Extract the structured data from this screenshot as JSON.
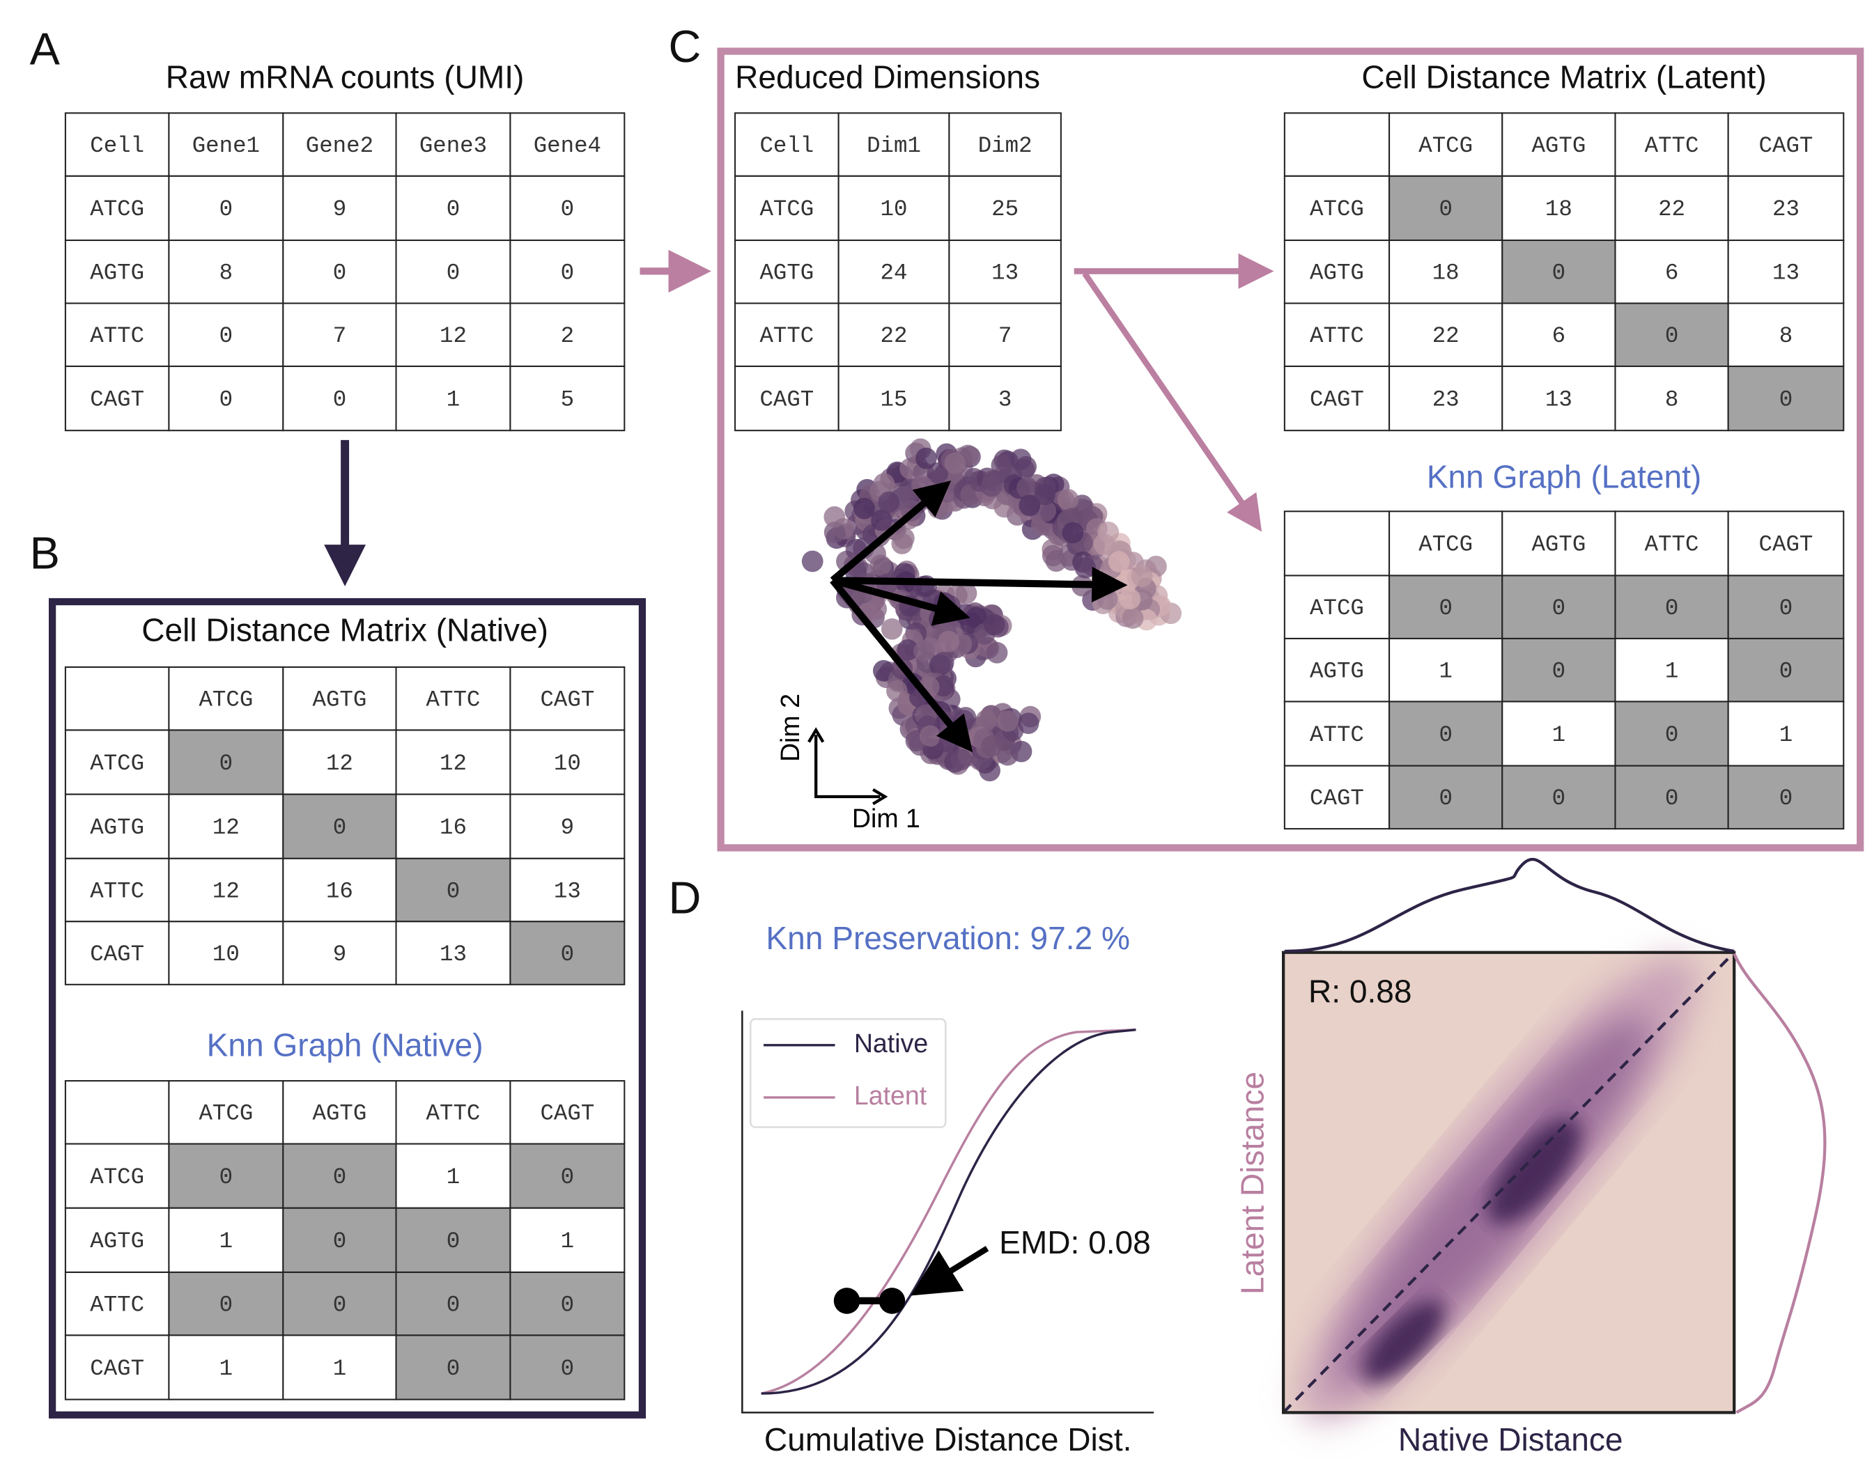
{
  "panel_labels": {
    "a": "A",
    "b": "B",
    "c": "C",
    "d": "D"
  },
  "raw_counts": {
    "title": "Raw mRNA counts (UMI)",
    "columns": [
      "Cell",
      "Gene1",
      "Gene2",
      "Gene3",
      "Gene4"
    ],
    "rows": [
      {
        "cell": "ATCG",
        "values": [
          0,
          9,
          0,
          0
        ]
      },
      {
        "cell": "AGTG",
        "values": [
          8,
          0,
          0,
          0
        ]
      },
      {
        "cell": "ATTC",
        "values": [
          0,
          7,
          12,
          2
        ]
      },
      {
        "cell": "CAGT",
        "values": [
          0,
          0,
          1,
          5
        ]
      }
    ],
    "shade_zero": false
  },
  "native_distance": {
    "title": "Cell Distance Matrix (Native)",
    "columns": [
      "ATCG",
      "AGTG",
      "ATTC",
      "CAGT"
    ],
    "rows": [
      {
        "cell": "ATCG",
        "values": [
          0,
          12,
          12,
          10
        ]
      },
      {
        "cell": "AGTG",
        "values": [
          12,
          0,
          16,
          9
        ]
      },
      {
        "cell": "ATTC",
        "values": [
          12,
          16,
          0,
          13
        ]
      },
      {
        "cell": "CAGT",
        "values": [
          10,
          9,
          13,
          0
        ]
      }
    ],
    "shade_zero": true
  },
  "native_knn": {
    "title": "Knn Graph (Native)",
    "columns": [
      "ATCG",
      "AGTG",
      "ATTC",
      "CAGT"
    ],
    "rows": [
      {
        "cell": "ATCG",
        "values": [
          0,
          0,
          1,
          0
        ]
      },
      {
        "cell": "AGTG",
        "values": [
          1,
          0,
          0,
          1
        ]
      },
      {
        "cell": "ATTC",
        "values": [
          0,
          0,
          0,
          0
        ]
      },
      {
        "cell": "CAGT",
        "values": [
          1,
          1,
          0,
          0
        ]
      }
    ],
    "shade_zero": true
  },
  "reduced_dimensions": {
    "title": "Reduced Dimensions",
    "columns": [
      "Cell",
      "Dim1",
      "Dim2"
    ],
    "rows": [
      {
        "cell": "ATCG",
        "values": [
          10,
          25
        ]
      },
      {
        "cell": "AGTG",
        "values": [
          24,
          13
        ]
      },
      {
        "cell": "ATTC",
        "values": [
          22,
          7
        ]
      },
      {
        "cell": "CAGT",
        "values": [
          15,
          3
        ]
      }
    ],
    "shade_zero": false
  },
  "latent_distance": {
    "title": "Cell Distance Matrix (Latent)",
    "columns": [
      "ATCG",
      "AGTG",
      "ATTC",
      "CAGT"
    ],
    "rows": [
      {
        "cell": "ATCG",
        "values": [
          0,
          18,
          22,
          23
        ]
      },
      {
        "cell": "AGTG",
        "values": [
          18,
          0,
          6,
          13
        ]
      },
      {
        "cell": "ATTC",
        "values": [
          22,
          6,
          0,
          8
        ]
      },
      {
        "cell": "CAGT",
        "values": [
          23,
          13,
          8,
          0
        ]
      }
    ],
    "shade_zero": true
  },
  "latent_knn": {
    "title": "Knn Graph (Latent)",
    "columns": [
      "ATCG",
      "AGTG",
      "ATTC",
      "CAGT"
    ],
    "rows": [
      {
        "cell": "ATCG",
        "values": [
          0,
          0,
          0,
          0
        ]
      },
      {
        "cell": "AGTG",
        "values": [
          1,
          0,
          1,
          0
        ]
      },
      {
        "cell": "ATTC",
        "values": [
          0,
          1,
          0,
          1
        ]
      },
      {
        "cell": "CAGT",
        "values": [
          0,
          0,
          0,
          0
        ]
      }
    ],
    "shade_zero": true
  },
  "embedding": {
    "x_label": "Dim 1",
    "y_label": "Dim 2"
  },
  "preservation": {
    "title": "Knn Preservation: 97.2 %",
    "legend": [
      "Native",
      "Latent"
    ],
    "emd_label": "EMD: 0.08",
    "x_label": "Cumulative Distance Dist."
  },
  "correlation": {
    "r_label": "R: 0.88",
    "x_label": "Native Distance",
    "y_label": "Latent Distance"
  }
}
